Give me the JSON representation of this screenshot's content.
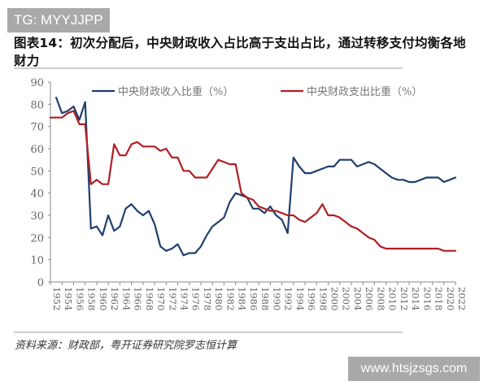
{
  "watermark_top": "TG: MYYJJPP",
  "watermark_bottom": "www.htsjzsgs.com",
  "header": {
    "title_line1": "图表14：初次分配后，中央财政收入占比高于支出占比，通过转移支付均衡各地",
    "title_line2": "财力"
  },
  "footer": {
    "source": "资料来源：财政部，粤开证券研究院罗志恒计算"
  },
  "colors": {
    "revenue": "#1f3f6e",
    "expenditure": "#b01e23",
    "axis": "#8a8a8a",
    "tick_text": "#666666"
  },
  "chart_data": {
    "type": "line",
    "title": "图表14：初次分配后，中央财政收入占比高于支出占比，通过转移支付均衡各地财力",
    "xlabel": "",
    "ylabel": "",
    "ylim": [
      0,
      90
    ],
    "yticks": [
      0,
      10,
      20,
      30,
      40,
      50,
      60,
      70,
      80,
      90
    ],
    "xlim": [
      1952,
      2022
    ],
    "xticks": [
      1952,
      1954,
      1956,
      1958,
      1960,
      1962,
      1964,
      1966,
      1968,
      1970,
      1972,
      1974,
      1976,
      1978,
      1980,
      1982,
      1984,
      1986,
      1988,
      1990,
      1992,
      1994,
      1996,
      1998,
      2000,
      2002,
      2004,
      2006,
      2008,
      2010,
      2012,
      2014,
      2016,
      2018,
      2020,
      2022
    ],
    "grid": false,
    "legend_position": "top",
    "x": [
      1952,
      1953,
      1954,
      1955,
      1956,
      1957,
      1958,
      1959,
      1960,
      1961,
      1962,
      1963,
      1964,
      1965,
      1966,
      1967,
      1968,
      1969,
      1970,
      1971,
      1972,
      1973,
      1974,
      1975,
      1976,
      1977,
      1978,
      1979,
      1980,
      1981,
      1982,
      1983,
      1984,
      1985,
      1986,
      1987,
      1988,
      1989,
      1990,
      1991,
      1992,
      1993,
      1994,
      1995,
      1996,
      1997,
      1998,
      1999,
      2000,
      2001,
      2002,
      2003,
      2004,
      2005,
      2006,
      2007,
      2008,
      2009,
      2010,
      2011,
      2012,
      2013,
      2014,
      2015,
      2016,
      2017,
      2018,
      2019,
      2020,
      2021,
      2022
    ],
    "series": [
      {
        "name": "中央财政收入比重（%）",
        "color": "#1f3f6e",
        "values": [
          null,
          83,
          76,
          77,
          79,
          73,
          81,
          24,
          25,
          21,
          30,
          23,
          25,
          33,
          35,
          32,
          30,
          32,
          26,
          16,
          14,
          15,
          17,
          12,
          13,
          13,
          16,
          21,
          25,
          27,
          29,
          36,
          40,
          39,
          38,
          33,
          33,
          31,
          34,
          30,
          28,
          22,
          56,
          52,
          49,
          49,
          50,
          51,
          52,
          52,
          55,
          55,
          55,
          52,
          53,
          54,
          53,
          51,
          49,
          47,
          46,
          46,
          45,
          45,
          46,
          47,
          47,
          47,
          45,
          46,
          47
        ]
      },
      {
        "name": "中央财政支出比重（%）",
        "color": "#b01e23",
        "values": [
          74,
          74,
          74,
          76,
          77,
          71,
          71,
          44,
          46,
          44,
          44,
          62,
          57,
          57,
          62,
          63,
          61,
          61,
          61,
          59,
          60,
          56,
          56,
          50,
          50,
          47,
          47,
          47,
          51,
          55,
          54,
          53,
          53,
          40,
          38,
          37,
          34,
          33,
          32,
          32,
          31,
          30,
          30,
          28,
          27,
          29,
          31,
          35,
          30,
          30,
          29,
          27,
          25,
          24,
          22,
          20,
          19,
          16,
          15,
          15,
          15,
          15,
          15,
          15,
          15,
          15,
          15,
          15,
          14,
          14,
          14
        ]
      }
    ]
  }
}
